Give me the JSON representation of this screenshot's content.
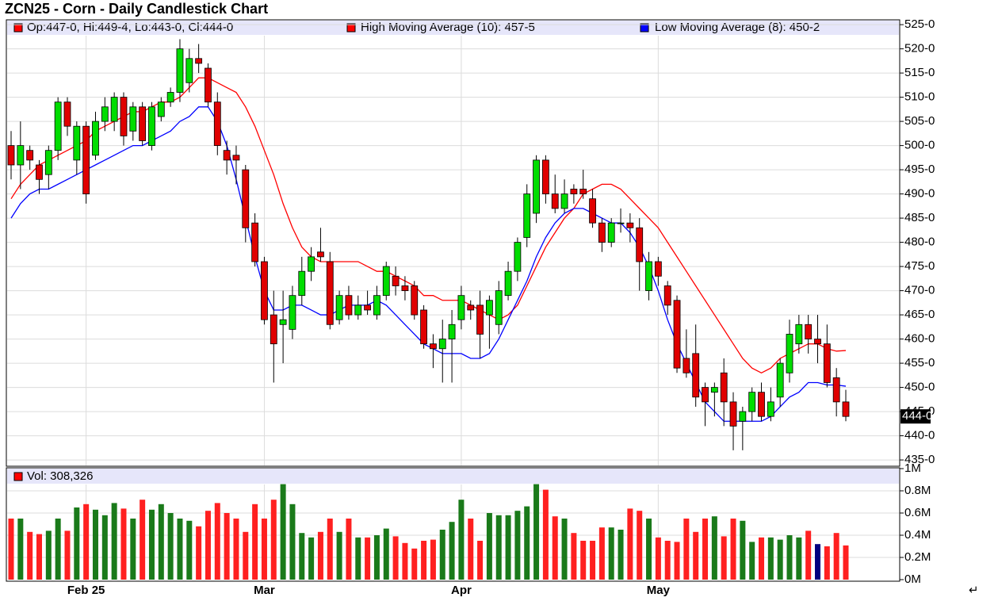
{
  "chart_data": [
    {
      "type": "candlestick",
      "title": "ZCN25 - Corn - Daily Candlestick Chart",
      "ohlc_legend": "Op:447-0, Hi:449-4, Lo:443-0, Cl:444-0",
      "ohlc_legend_color": "#ff0000",
      "last_label": "444-0",
      "up_color": "#00dd00",
      "down_color": "#e00000",
      "categories": [
        null,
        null,
        null,
        null,
        null,
        null,
        null,
        null,
        "Feb 25",
        null,
        null,
        null,
        null,
        null,
        null,
        null,
        null,
        null,
        null,
        null,
        null,
        null,
        null,
        null,
        null,
        null,
        null,
        "Mar",
        null,
        null,
        null,
        null,
        null,
        null,
        null,
        null,
        null,
        null,
        null,
        null,
        null,
        null,
        null,
        null,
        null,
        null,
        null,
        null,
        "Apr",
        null,
        null,
        null,
        null,
        null,
        null,
        null,
        null,
        null,
        null,
        null,
        null,
        null,
        null,
        null,
        null,
        null,
        null,
        null,
        null,
        "May",
        null,
        null,
        null,
        null,
        null,
        null,
        null,
        null,
        null,
        null,
        null,
        null,
        null,
        null,
        null,
        null,
        null,
        null,
        null,
        null
      ],
      "open": [
        500,
        496,
        499,
        496,
        494,
        499,
        509,
        497,
        504,
        498,
        505,
        505,
        510,
        503,
        508,
        500,
        506,
        509,
        511,
        513,
        518,
        516,
        509,
        499,
        498,
        495,
        484,
        476,
        465,
        463,
        462,
        469,
        474,
        478,
        476,
        464,
        469,
        465,
        467,
        465,
        469,
        473,
        471,
        471,
        466,
        459,
        458,
        460,
        464,
        467,
        467,
        465,
        463,
        469,
        474,
        481,
        486,
        497,
        490,
        487,
        491,
        491,
        489,
        484,
        480,
        484,
        484,
        483,
        470,
        476,
        471,
        468,
        456,
        457,
        450,
        449,
        453,
        447,
        443,
        445,
        449,
        444,
        448,
        453,
        459,
        463,
        460,
        459,
        452,
        447
      ],
      "high": [
        503,
        505,
        500,
        497,
        500,
        510,
        510,
        505,
        505,
        507,
        510,
        511,
        511,
        509,
        509,
        509,
        510,
        512,
        522,
        520,
        521,
        517,
        511,
        501,
        500,
        496,
        486,
        477,
        470,
        470,
        471,
        477,
        479,
        483,
        478,
        470,
        471,
        469,
        470,
        471,
        476,
        475,
        473,
        472,
        467,
        461,
        464,
        466,
        471,
        468,
        470,
        469,
        472,
        476,
        481,
        492,
        498,
        498,
        494,
        493,
        492,
        495,
        491,
        485,
        485,
        487,
        486,
        485,
        478,
        477,
        472,
        469,
        462,
        463,
        451,
        451,
        456,
        449,
        446,
        450,
        451,
        450,
        456,
        464,
        465,
        465,
        465,
        463,
        454,
        449.5
      ],
      "low": [
        493,
        491,
        495,
        490,
        491,
        497,
        502,
        494,
        488,
        497,
        503,
        503,
        500,
        501,
        500,
        499,
        505,
        508,
        509,
        511,
        515,
        508,
        498,
        494,
        492,
        480,
        475,
        463,
        451,
        455,
        460,
        467,
        472,
        476,
        462,
        463,
        464,
        464,
        465,
        464,
        468,
        469,
        468,
        464,
        458,
        454,
        451,
        451,
        462,
        464,
        456,
        458,
        461,
        468,
        472,
        479,
        484,
        488,
        486,
        486,
        488,
        489,
        483,
        478,
        479,
        482,
        480,
        470,
        468,
        471,
        465,
        453,
        452,
        446,
        442,
        444,
        442,
        437,
        437,
        443,
        443,
        443,
        446,
        451,
        457,
        457,
        455,
        450,
        444,
        443
      ],
      "close": [
        496,
        500,
        497,
        493,
        499,
        509,
        504,
        504,
        490,
        505,
        508,
        510,
        502,
        508,
        501,
        508,
        509,
        511,
        520,
        518,
        517,
        509,
        500,
        497,
        497,
        483,
        476,
        464,
        459,
        464,
        469,
        474,
        477,
        477,
        463,
        469,
        465,
        467,
        466,
        469,
        475,
        471,
        470,
        465,
        459,
        458,
        460,
        463,
        469,
        466,
        461,
        468,
        470,
        474,
        480,
        490,
        497,
        490,
        487,
        490,
        490,
        490,
        484,
        480,
        484,
        484,
        483,
        476,
        476,
        473,
        467,
        454,
        453,
        448,
        447,
        450,
        447,
        442,
        445,
        449,
        444,
        447,
        455,
        461,
        463,
        460,
        459,
        451,
        447,
        444
      ],
      "series": [
        {
          "name": "High Moving Average (10): 457-5",
          "color": "#ff0000",
          "values": [
            489,
            492,
            494,
            496,
            497,
            498,
            499,
            500,
            501,
            503,
            504,
            505,
            506,
            507,
            507,
            508,
            509,
            509,
            510,
            512,
            514,
            514,
            513,
            512,
            511,
            508,
            504,
            499,
            494,
            488,
            483,
            479,
            477,
            476,
            476,
            476,
            476,
            476,
            475,
            474,
            474,
            473,
            472,
            471,
            469,
            469,
            468,
            468,
            468,
            467,
            466,
            465,
            464,
            465,
            467,
            471,
            475,
            479,
            482,
            485,
            487,
            490,
            491,
            492,
            492,
            491,
            489,
            487,
            485,
            483,
            480,
            477,
            474,
            471,
            468,
            465,
            462,
            459,
            456,
            454,
            453,
            454,
            456,
            457,
            458,
            459,
            459,
            458,
            457.5,
            457.625
          ]
        },
        {
          "name": "Low Moving Average (8): 450-2",
          "color": "#0000ff",
          "values": [
            485,
            488,
            490,
            491,
            491,
            492,
            493,
            494,
            495,
            496,
            497,
            498,
            499,
            500,
            500,
            501,
            502,
            503,
            505,
            506,
            508,
            508,
            505,
            500,
            493,
            485,
            477,
            470,
            466,
            466,
            467,
            467,
            466,
            465,
            465,
            466,
            467,
            467,
            467,
            468,
            467,
            465,
            463,
            461,
            459,
            458,
            457,
            457,
            457,
            456,
            456,
            457,
            460,
            464,
            468,
            472,
            477,
            481,
            484,
            486,
            487,
            487,
            486,
            485,
            484,
            484,
            482,
            479,
            475,
            470,
            464,
            459,
            455,
            451,
            447,
            445,
            443,
            443,
            443,
            443,
            443,
            444,
            446,
            448,
            449,
            451,
            451,
            450.5,
            450.5,
            450.25
          ]
        }
      ],
      "ylim": [
        433.7,
        526
      ],
      "yticks": [
        {
          "value": 435,
          "label": "435-0"
        },
        {
          "value": 440,
          "label": "440-0"
        },
        {
          "value": 445,
          "label": "445-0"
        },
        {
          "value": 450,
          "label": "450-0"
        },
        {
          "value": 455,
          "label": "455-0"
        },
        {
          "value": 460,
          "label": "460-0"
        },
        {
          "value": 465,
          "label": "465-0"
        },
        {
          "value": 470,
          "label": "470-0"
        },
        {
          "value": 475,
          "label": "475-0"
        },
        {
          "value": 480,
          "label": "480-0"
        },
        {
          "value": 485,
          "label": "485-0"
        },
        {
          "value": 490,
          "label": "490-0"
        },
        {
          "value": 495,
          "label": "495-0"
        },
        {
          "value": 500,
          "label": "500-0"
        },
        {
          "value": 505,
          "label": "505-0"
        },
        {
          "value": 510,
          "label": "510-0"
        },
        {
          "value": 515,
          "label": "515-0"
        },
        {
          "value": 520,
          "label": "520-0"
        },
        {
          "value": 525,
          "label": "525-0"
        }
      ],
      "grid": true
    },
    {
      "type": "bar",
      "legend": "Vol: 308,326",
      "legend_color": "#ff0000",
      "up_color": "#1a7a1a",
      "down_color": "#ff2020",
      "highlight": {
        "index": 86,
        "color": "#000080"
      },
      "values": [
        0.55,
        0.55,
        0.43,
        0.41,
        0.44,
        0.55,
        0.44,
        0.65,
        0.68,
        0.63,
        0.58,
        0.69,
        0.64,
        0.55,
        0.72,
        0.63,
        0.68,
        0.6,
        0.55,
        0.53,
        0.48,
        0.62,
        0.69,
        0.6,
        0.55,
        0.43,
        0.68,
        0.55,
        0.72,
        0.86,
        0.68,
        0.42,
        0.38,
        0.43,
        0.55,
        0.43,
        0.55,
        0.38,
        0.38,
        0.4,
        0.46,
        0.39,
        0.33,
        0.28,
        0.35,
        0.36,
        0.45,
        0.52,
        0.72,
        0.55,
        0.35,
        0.6,
        0.58,
        0.58,
        0.62,
        0.66,
        0.86,
        0.81,
        0.57,
        0.55,
        0.42,
        0.35,
        0.35,
        0.47,
        0.47,
        0.45,
        0.64,
        0.62,
        0.55,
        0.38,
        0.35,
        0.34,
        0.55,
        0.43,
        0.55,
        0.57,
        0.39,
        0.55,
        0.53,
        0.34,
        0.38,
        0.38,
        0.36,
        0.4,
        0.38,
        0.44,
        0.32,
        0.3,
        0.42,
        0.308
      ],
      "ylim": [
        0,
        1
      ],
      "yticks": [
        {
          "value": 0,
          "label": "0M"
        },
        {
          "value": 0.2,
          "label": "0.2M"
        },
        {
          "value": 0.4,
          "label": "0.4M"
        },
        {
          "value": 0.6,
          "label": "0.6M"
        },
        {
          "value": 0.8,
          "label": "0.8M"
        },
        {
          "value": 1,
          "label": "1M"
        }
      ],
      "grid": true
    }
  ],
  "return_mark": "↵"
}
